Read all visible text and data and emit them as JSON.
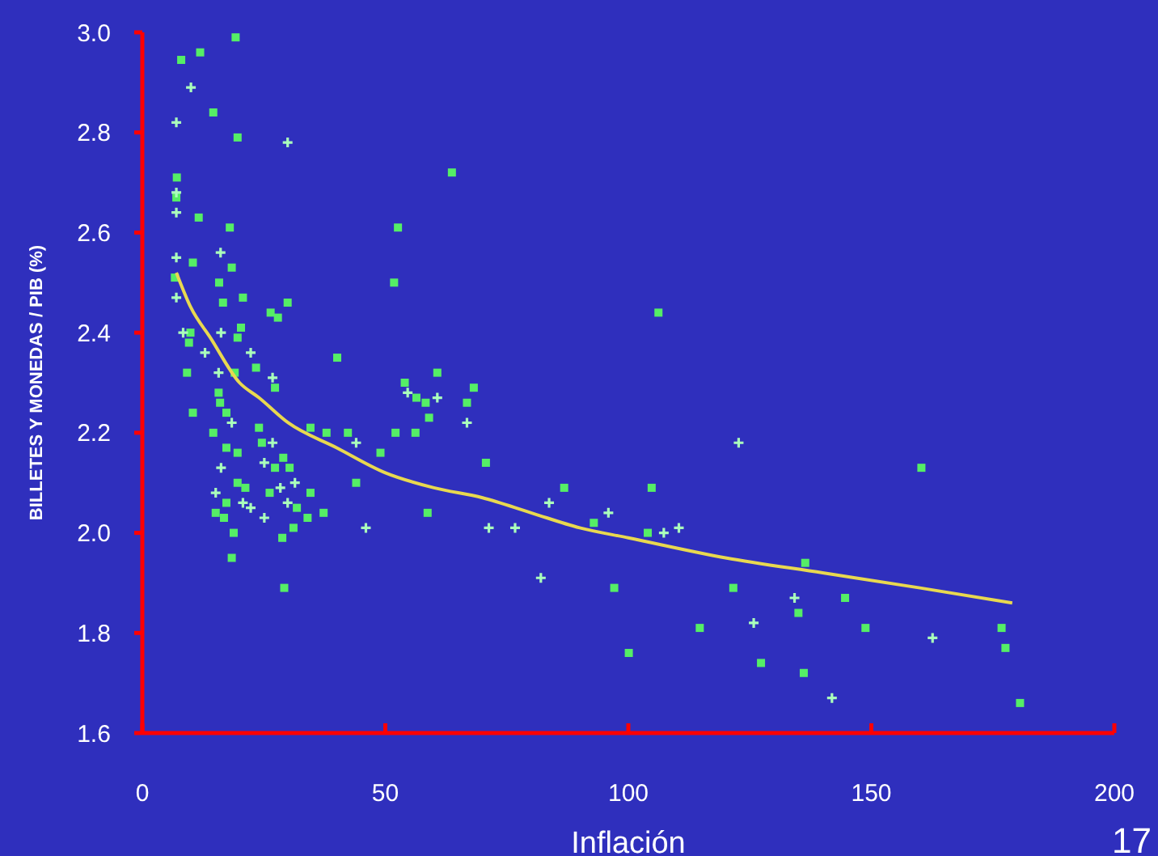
{
  "chart_data": {
    "type": "scatter",
    "xlabel": "Inflación",
    "ylabel": "BILLETES Y MONEDAS / PIB (%)",
    "annotations": [
      "17"
    ],
    "xlim": [
      0,
      200
    ],
    "xticks": [
      0,
      50,
      100,
      150,
      200
    ],
    "ylim": [
      1.6,
      3.0
    ],
    "yticks": [
      {
        "value": 1.6,
        "label": "1.6"
      },
      {
        "value": 1.8,
        "label": "1.8"
      },
      {
        "value": 2.0,
        "label": "2.0"
      },
      {
        "value": 2.2,
        "label": "2.2"
      },
      {
        "value": 2.4,
        "label": "2.4"
      },
      {
        "value": 2.6,
        "label": "2.6"
      },
      {
        "value": 2.8,
        "label": "2.8"
      },
      {
        "value": 3.0,
        "label": "3.0"
      }
    ],
    "grid": false,
    "series": [
      {
        "marker": "square",
        "color": "#55ee66",
        "x": [
          19.2,
          8,
          11.9,
          14.6,
          19.6,
          7.1,
          7,
          11.6,
          18,
          10.4,
          6.7,
          18.4,
          15.8,
          20.7,
          16.6,
          29.9,
          26.4,
          27.9,
          20.3,
          9.9,
          9.6,
          19.6,
          40.1,
          23.4,
          9.2,
          60.7,
          19,
          27.3,
          54,
          63.7,
          52.6,
          51.8,
          106.2,
          56.4,
          58.3,
          68.2,
          66.8,
          59,
          56.2,
          52.1,
          49,
          70.7,
          86.8,
          104.8,
          92.9,
          104,
          58.7,
          97.1,
          121.6,
          44,
          160.3,
          136.4,
          144.6,
          135,
          114.7,
          148.8,
          176.8,
          177.6,
          100.1,
          127.3,
          136.1,
          180.6,
          15.7,
          10.4,
          16,
          17.3,
          14.6,
          24,
          34.6,
          37.9,
          42.3,
          17.3,
          19.6,
          24.6,
          29,
          27.3,
          30.3,
          19.6,
          21.2,
          34.6,
          26.2,
          17.3,
          31.8,
          34,
          37.3,
          15.1,
          16.8,
          18.8,
          31.1,
          28.8,
          18.4,
          29.2
        ],
        "values": [
          2.99,
          2.945,
          2.96,
          2.84,
          2.79,
          2.71,
          2.67,
          2.63,
          2.61,
          2.54,
          2.51,
          2.53,
          2.5,
          2.47,
          2.46,
          2.46,
          2.44,
          2.43,
          2.41,
          2.4,
          2.38,
          2.39,
          2.35,
          2.33,
          2.32,
          2.32,
          2.32,
          2.29,
          2.3,
          2.72,
          2.61,
          2.5,
          2.44,
          2.27,
          2.26,
          2.29,
          2.26,
          2.23,
          2.2,
          2.2,
          2.16,
          2.14,
          2.09,
          2.09,
          2.02,
          2,
          2.04,
          1.89,
          1.89,
          2.1,
          2.13,
          1.94,
          1.87,
          1.84,
          1.81,
          1.81,
          1.81,
          1.77,
          1.76,
          1.74,
          1.72,
          1.66,
          2.28,
          2.24,
          2.26,
          2.24,
          2.2,
          2.21,
          2.21,
          2.2,
          2.2,
          2.17,
          2.16,
          2.18,
          2.15,
          2.13,
          2.13,
          2.1,
          2.09,
          2.08,
          2.08,
          2.06,
          2.05,
          2.03,
          2.04,
          2.04,
          2.03,
          2,
          2.01,
          1.99,
          1.95,
          1.89
        ]
      },
      {
        "marker": "cross",
        "color": "#aaffbb",
        "x": [
          10,
          7,
          29.9,
          7,
          7,
          7,
          16.1,
          7,
          8.4,
          16.2,
          12.9,
          22.3,
          15.7,
          26.8,
          54.6,
          60.7,
          66.8,
          44,
          83.7,
          122.7,
          95.9,
          107.3,
          110.4,
          46,
          71.3,
          76.7,
          82,
          134.2,
          125.8,
          162.6,
          141.9,
          18.4,
          26.8,
          16.2,
          25.1,
          31.4,
          28.4,
          15.1,
          20.7,
          22.3,
          25.1,
          29.9
        ],
        "values": [
          2.89,
          2.82,
          2.78,
          2.68,
          2.64,
          2.55,
          2.56,
          2.47,
          2.4,
          2.4,
          2.36,
          2.36,
          2.32,
          2.31,
          2.28,
          2.27,
          2.22,
          2.18,
          2.06,
          2.18,
          2.04,
          2,
          2.01,
          2.01,
          2.01,
          2.01,
          1.91,
          1.87,
          1.82,
          1.79,
          1.67,
          2.22,
          2.18,
          2.13,
          2.14,
          2.1,
          2.09,
          2.08,
          2.06,
          2.05,
          2.03,
          2.06
        ]
      },
      {
        "type": "line",
        "marker": "none",
        "line_style": "solid",
        "color": "#e8d850",
        "x": [
          7,
          10,
          14,
          20,
          24,
          30,
          40,
          50,
          60,
          70,
          80,
          90,
          100,
          120,
          140,
          160,
          179
        ],
        "values": [
          2.52,
          2.45,
          2.39,
          2.3,
          2.27,
          2.22,
          2.17,
          2.12,
          2.09,
          2.07,
          2.04,
          2.01,
          1.99,
          1.95,
          1.92,
          1.89,
          1.86
        ]
      }
    ]
  }
}
